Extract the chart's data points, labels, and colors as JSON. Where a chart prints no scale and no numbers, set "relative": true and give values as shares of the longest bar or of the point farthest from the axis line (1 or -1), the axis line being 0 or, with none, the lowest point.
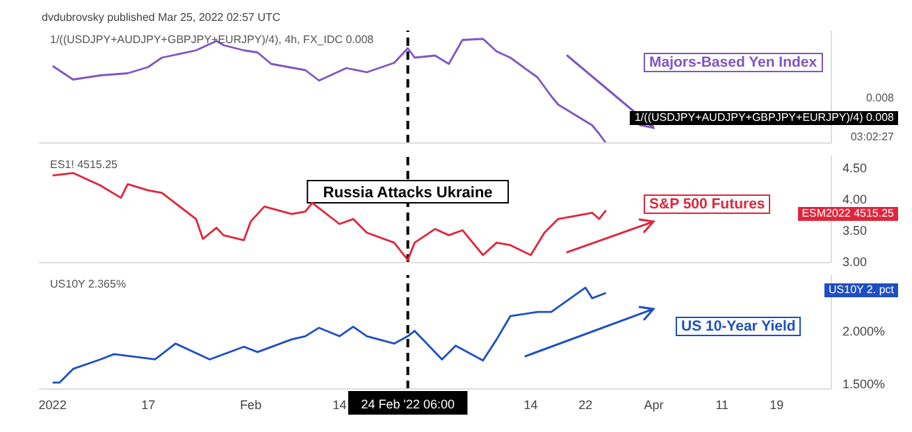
{
  "chart_data": [
    {
      "type": "line",
      "subtitle": "dvdubrovsky published Mar 25, 2022 02:57 UTC",
      "title": "1/((USDJPY+AUDJPY+GBPJPY+EURJPY)/4), 4h, FX_IDC  0.008",
      "relative": true,
      "tick_labels": false,
      "x": [
        "2022-01-03",
        "2022-01-06",
        "2022-01-10",
        "2022-01-12",
        "2022-01-14",
        "2022-01-17",
        "2022-01-19",
        "2022-01-24",
        "2022-01-27",
        "2022-01-28",
        "2022-01-31",
        "2022-02-02",
        "2022-02-04",
        "2022-02-09",
        "2022-02-11",
        "2022-02-15",
        "2022-02-18",
        "2022-02-22",
        "2022-02-24",
        "2022-02-25",
        "2022-02-28",
        "2022-03-02",
        "2022-03-04",
        "2022-03-07",
        "2022-03-09",
        "2022-03-11",
        "2022-03-15",
        "2022-03-17",
        "2022-03-18",
        "2022-03-22",
        "2022-03-23",
        "2022-03-24",
        "2022-03-25"
      ],
      "xlim": [
        "2022-01-01",
        "2022-04-27"
      ],
      "series": [
        {
          "name": "Majors-Based Yen Index",
          "color": "#7e57c2",
          "values": [
            0.74,
            0.61,
            0.65,
            0.66,
            0.67,
            0.73,
            0.82,
            0.89,
            0.98,
            0.94,
            0.89,
            0.87,
            0.76,
            0.7,
            0.6,
            0.72,
            0.68,
            0.77,
            0.91,
            0.82,
            0.84,
            0.76,
            0.99,
            1,
            0.88,
            0.82,
            0.63,
            0.45,
            0.37,
            0.21,
            0.17,
            0.09,
            0
          ]
        }
      ],
      "ref_lines": [
        {
          "axis": "x",
          "value": "2022-02-24",
          "color": "#000000",
          "line_style": "dashed"
        }
      ],
      "annotations": [
        "0.008",
        "1/((USDJPY+AUDJPY+GBPJPY+EURJPY)/4)  0.008",
        "03:02:27"
      ]
    },
    {
      "type": "line",
      "title": "ES1!  4515.25",
      "tick_labels": "y",
      "x": [
        "2022-01-03",
        "2022-01-06",
        "2022-01-10",
        "2022-01-13",
        "2022-01-14",
        "2022-01-17",
        "2022-01-19",
        "2022-01-24",
        "2022-01-25",
        "2022-01-27",
        "2022-01-28",
        "2022-01-31",
        "2022-02-01",
        "2022-02-03",
        "2022-02-07",
        "2022-02-09",
        "2022-02-10",
        "2022-02-14",
        "2022-02-16",
        "2022-02-18",
        "2022-02-22",
        "2022-02-24",
        "2022-02-25",
        "2022-02-28",
        "2022-03-02",
        "2022-03-04",
        "2022-03-07",
        "2022-03-09",
        "2022-03-11",
        "2022-03-14",
        "2022-03-16",
        "2022-03-18",
        "2022-03-23",
        "2022-03-24",
        "2022-03-25"
      ],
      "xlim": [
        "2022-01-01",
        "2022-04-27"
      ],
      "ylim": [
        2.98,
        4.7
      ],
      "yticks": [
        {
          "value": 3,
          "label": "3.00"
        },
        {
          "value": 3.5,
          "label": "3.50"
        },
        {
          "value": 4,
          "label": "4.00"
        },
        {
          "value": 4.5,
          "label": "4.50"
        }
      ],
      "series": [
        {
          "name": "S&P 500 Futures",
          "color": "#e0263b",
          "values": [
            4.38,
            4.42,
            4.22,
            4.02,
            4.24,
            4.14,
            4.1,
            3.68,
            3.36,
            3.54,
            3.42,
            3.34,
            3.64,
            3.88,
            3.76,
            3.8,
            3.94,
            3.6,
            3.68,
            3.46,
            3.3,
            3.02,
            3.3,
            3.52,
            3.42,
            3.5,
            3.1,
            3.3,
            3.26,
            3.1,
            3.46,
            3.68,
            3.78,
            3.68,
            3.82
          ]
        }
      ],
      "ref_lines": [
        {
          "axis": "x",
          "value": "2022-02-24",
          "label": "Russia Attacks Ukraine",
          "color": "#000000",
          "line_style": "dashed"
        }
      ],
      "annotations": [
        "ESM2022  4515.25"
      ]
    },
    {
      "type": "line",
      "title": "US10Y  2.365%",
      "x": [
        "2022-01-03",
        "2022-01-04",
        "2022-01-06",
        "2022-01-10",
        "2022-01-12",
        "2022-01-18",
        "2022-01-21",
        "2022-01-26",
        "2022-01-31",
        "2022-02-02",
        "2022-02-07",
        "2022-02-09",
        "2022-02-11",
        "2022-02-14",
        "2022-02-16",
        "2022-02-18",
        "2022-02-22",
        "2022-02-24",
        "2022-02-25",
        "2022-03-01",
        "2022-03-03",
        "2022-03-07",
        "2022-03-09",
        "2022-03-11",
        "2022-03-15",
        "2022-03-17",
        "2022-03-22",
        "2022-03-23",
        "2022-03-25"
      ],
      "xlim": [
        "2022-01-01",
        "2022-04-27"
      ],
      "ylim": [
        1.45,
        2.53
      ],
      "xticks": [
        {
          "value": "2022-01-03",
          "label": "2022"
        },
        {
          "value": "2022-01-17",
          "label": "17"
        },
        {
          "value": "2022-02-01",
          "label": "Feb"
        },
        {
          "value": "2022-02-14",
          "label": "14"
        },
        {
          "value": "2022-03-14",
          "label": "14"
        },
        {
          "value": "2022-03-22",
          "label": "22"
        },
        {
          "value": "2022-04-01",
          "label": "Apr"
        },
        {
          "value": "2022-04-11",
          "label": "11"
        },
        {
          "value": "2022-04-19",
          "label": "19"
        }
      ],
      "yticks": [
        {
          "value": 1.5,
          "label": "1.500%"
        },
        {
          "value": 2,
          "label": "2.000%"
        }
      ],
      "series": [
        {
          "name": "US 10-Year Yield",
          "color": "#1e4fc2",
          "values": [
            1.51,
            1.51,
            1.64,
            1.73,
            1.78,
            1.73,
            1.88,
            1.73,
            1.85,
            1.8,
            1.92,
            1.95,
            2.03,
            1.95,
            2.04,
            1.95,
            1.88,
            1.95,
            2,
            1.73,
            1.86,
            1.72,
            1.92,
            2.14,
            2.18,
            2.18,
            2.41,
            2.31,
            2.36
          ]
        }
      ],
      "ref_lines": [
        {
          "axis": "x",
          "value": "2022-02-24",
          "label": "24 Feb '22 06:00",
          "color": "#000000",
          "line_style": "dashed"
        }
      ],
      "annotations": [
        "US10Y  2. pct"
      ]
    }
  ]
}
